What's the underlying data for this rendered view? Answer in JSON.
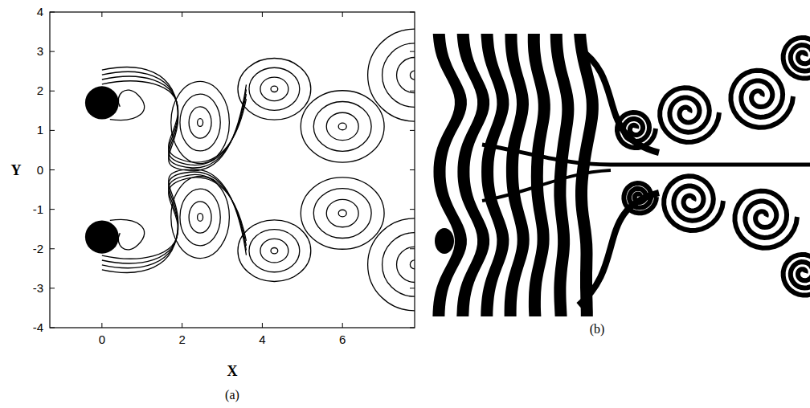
{
  "chart_data": {
    "type": "contour",
    "panel_label": "(a)",
    "x_label": "X",
    "y_label": "Y",
    "xlim": [
      -1.3,
      7.8
    ],
    "ylim": [
      -4,
      4
    ],
    "xticks": [
      0,
      2,
      4,
      6
    ],
    "yticks": [
      -4,
      -3,
      -2,
      -1,
      0,
      1,
      2,
      3,
      4
    ],
    "cylinders": [
      {
        "x": 0,
        "y": 1.7,
        "r": 0.42
      },
      {
        "x": 0,
        "y": -1.7,
        "r": 0.42
      }
    ],
    "vortices": [
      {
        "x": 2.45,
        "y": 1.2,
        "rx": 0.28,
        "ry": 0.4
      },
      {
        "x": 4.3,
        "y": 2.05,
        "rx": 0.35,
        "ry": 0.3
      },
      {
        "x": 6.0,
        "y": 1.1,
        "rx": 0.4,
        "ry": 0.35
      },
      {
        "x": 7.8,
        "y": 2.4,
        "rx": 0.45,
        "ry": 0.45
      },
      {
        "x": 2.45,
        "y": -1.2,
        "rx": 0.28,
        "ry": 0.4
      },
      {
        "x": 4.3,
        "y": -2.05,
        "rx": 0.35,
        "ry": 0.3
      },
      {
        "x": 6.0,
        "y": -1.1,
        "rx": 0.4,
        "ry": 0.35
      },
      {
        "x": 7.8,
        "y": -2.4,
        "rx": 0.45,
        "ry": 0.45
      }
    ]
  },
  "photo": {
    "panel_label": "(b)"
  }
}
